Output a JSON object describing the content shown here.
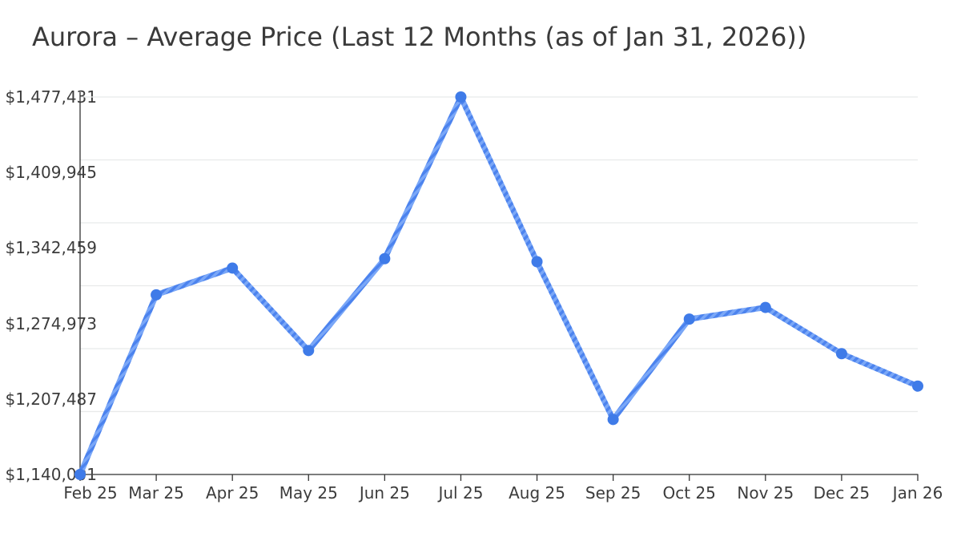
{
  "title": "Aurora – Average Price (Last 12 Months (as of Jan 31, 2026))",
  "chart_data": {
    "type": "line",
    "title": "Aurora – Average Price (Last 12 Months (as of Jan 31, 2026))",
    "series_name": "Average Price",
    "categories": [
      "Feb 25",
      "Mar 25",
      "Apr 25",
      "May 25",
      "Jun 25",
      "Jul 25",
      "Aug 25",
      "Sep 25",
      "Oct 25",
      "Nov 25",
      "Dec 25",
      "Jan 26"
    ],
    "values": [
      1140001,
      1300600,
      1324500,
      1250800,
      1332900,
      1477431,
      1330200,
      1189200,
      1278900,
      1289300,
      1248000,
      1219000
    ],
    "y_ticks": [
      1477431,
      1409945,
      1342459,
      1274973,
      1207487,
      1140001
    ],
    "y_tick_labels": [
      "$1,477,431",
      "$1,409,945",
      "$1,342,459",
      "$1,274,973",
      "$1,207,487",
      "$1,140,001"
    ],
    "ylim": [
      1140001,
      1477431
    ],
    "xlabel": "",
    "ylabel": "",
    "grid": true,
    "horizontal_gridline_count": 7,
    "legend": false,
    "colors": {
      "line": "#4c83ee",
      "line_stripe": "#7aa7f7",
      "marker": "#3f7be8",
      "grid": "#e8eaea",
      "axis": "#333333",
      "text": "#3c3c3c"
    }
  }
}
